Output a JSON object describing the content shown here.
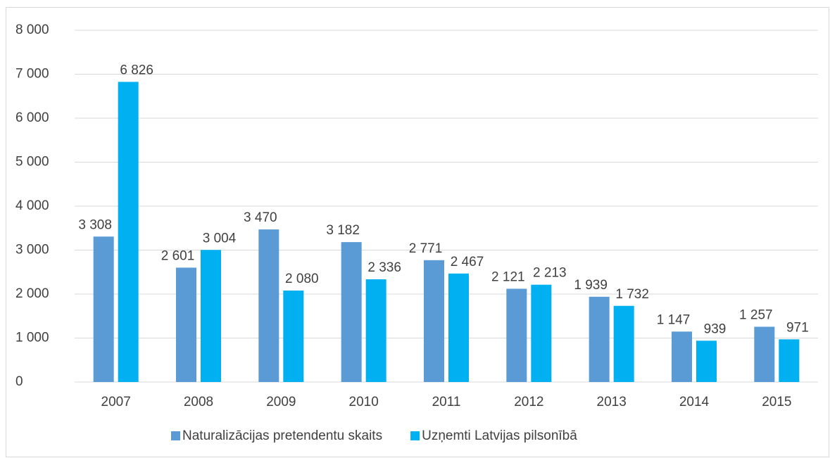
{
  "chart_data": {
    "type": "bar",
    "categories": [
      "2007",
      "2008",
      "2009",
      "2010",
      "2011",
      "2012",
      "2013",
      "2014",
      "2015"
    ],
    "series": [
      {
        "name": "Naturalizācijas pretendentu skaits",
        "color": "#5b9bd5",
        "values": [
          3308,
          2601,
          3470,
          3182,
          2771,
          2121,
          1939,
          1147,
          1257
        ],
        "value_labels": [
          "3 308",
          "2 601",
          "3 470",
          "3 182",
          "2 771",
          "2 121",
          "1 939",
          "1 147",
          "1 257"
        ]
      },
      {
        "name": "Uzņemti Latvijas pilsonībā",
        "color": "#00b0f0",
        "values": [
          6826,
          3004,
          2080,
          2336,
          2467,
          2213,
          1732,
          939,
          971
        ],
        "value_labels": [
          "6 826",
          "3 004",
          "2 080",
          "2 336",
          "2 467",
          "2 213",
          "1 732",
          "939",
          "971"
        ]
      }
    ],
    "ylim": [
      0,
      8000
    ],
    "yticks": [
      0,
      {
        "value": 1000,
        "label": "1 000"
      },
      {
        "value": 2000,
        "label": "2 000"
      },
      {
        "value": 3000,
        "label": "3 000"
      },
      {
        "value": 4000,
        "label": "4 000"
      },
      {
        "value": 5000,
        "label": "5 000"
      },
      {
        "value": 6000,
        "label": "6 000"
      },
      {
        "value": 7000,
        "label": "7 000"
      },
      {
        "value": 8000,
        "label": "8 000"
      }
    ],
    "grid": true,
    "legend": "bottom"
  }
}
